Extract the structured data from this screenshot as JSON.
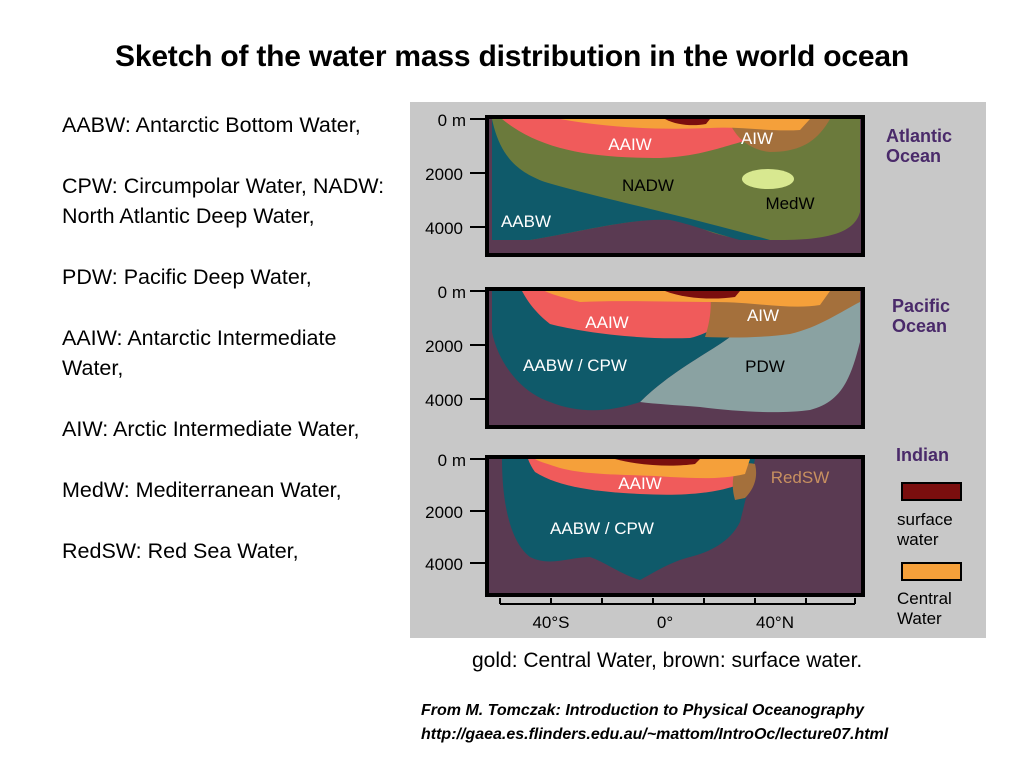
{
  "title": "Sketch of the water mass distribution in the world ocean",
  "legend": [
    "AABW: Antarctic Bottom Water,",
    "CPW: Circumpolar Water, NADW: North Atlantic Deep Water,",
    "PDW: Pacific Deep Water,",
    "AAIW: Antarctic Intermediate Water,",
    "AIW: Arctic Intermediate Water,",
    "MedW: Mediterranean Water,",
    "RedSW: Red Sea Water,"
  ],
  "figure": {
    "depth_ticks": [
      "0 m",
      "2000",
      "4000"
    ],
    "lat_ticks": [
      "40°S",
      "0°",
      "40°N"
    ],
    "atlantic": {
      "name_line1": "Atlantic",
      "name_line2": "Ocean",
      "labels": {
        "aaiw": "AAIW",
        "aiw": "AIW",
        "nadw": "NADW",
        "medw": "MedW",
        "aabw": "AABW"
      }
    },
    "pacific": {
      "name_line1": "Pacific",
      "name_line2": "Ocean",
      "labels": {
        "aaiw": "AAIW",
        "aiw": "AIW",
        "aabw_cpw": "AABW / CPW",
        "pdw": "PDW"
      }
    },
    "indian": {
      "name": "Indian",
      "labels": {
        "aaiw": "AAIW",
        "redsw": "RedSW",
        "aabw_cpw": "AABW / CPW"
      }
    },
    "key": {
      "surface_line1": "surface",
      "surface_line2": "water",
      "central_line1": "Central",
      "central_line2": "Water"
    },
    "colors": {
      "background": "#c8c8c8",
      "seafloor": "#5a3a52",
      "aabw": "#0f5a6a",
      "nadw": "#6b7a3c",
      "aaiw": "#f05b5b",
      "aiw": "#a4703c",
      "central": "#f5a03a",
      "surface": "#7a0e0e",
      "medw": "#d8e890",
      "pdw": "#8aa2a2",
      "label_purple": "#4a2a6a",
      "redsw_text": "#c89060"
    }
  },
  "caption": "gold: Central Water, brown: surface water.",
  "source": {
    "line1": "From M. Tomczak: Introduction to Physical Oceanography",
    "line2": "http://gaea.es.flinders.edu.au/~mattom/IntroOc/lecture07.html"
  }
}
